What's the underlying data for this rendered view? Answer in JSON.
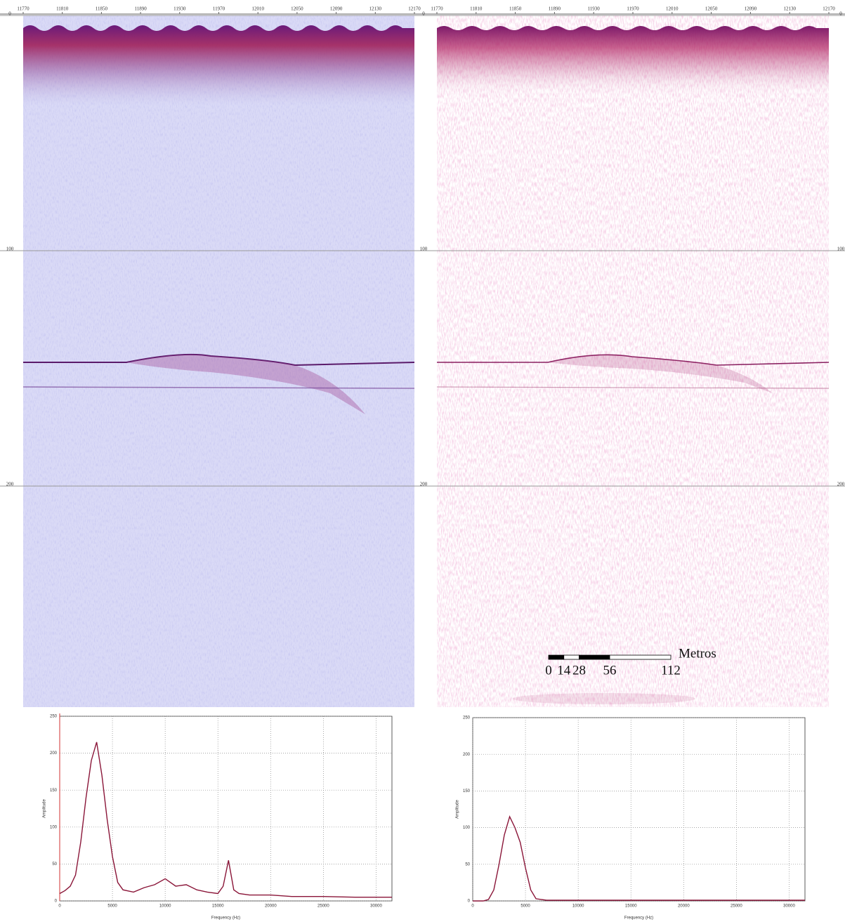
{
  "chart_data": [
    {
      "type": "section",
      "xlim": [
        11770,
        12170
      ],
      "xticks": [
        11770,
        11810,
        11850,
        11890,
        11930,
        11970,
        12010,
        12050,
        12090,
        12130,
        12170
      ],
      "ylim": [
        294,
        0
      ],
      "yticks": [
        0,
        100,
        200
      ],
      "grid": true,
      "color": "#dadaf6"
    },
    {
      "type": "section",
      "xlim": [
        11770,
        12170
      ],
      "xticks": [
        11770,
        11810,
        11850,
        11890,
        11930,
        11970,
        12010,
        12050,
        12090,
        12130,
        12170
      ],
      "ylim": [
        294,
        0
      ],
      "yticks": [
        0,
        100,
        200
      ],
      "grid": true,
      "color": "#ffffff",
      "scale_bar": {
        "ticks": [
          0,
          14,
          28,
          56,
          112
        ],
        "label": "Metros"
      }
    },
    {
      "type": "line",
      "xlabel": "Frequency (Hz)",
      "ylabel": "Amplitude",
      "xlim": [
        0,
        31500
      ],
      "ylim": [
        0,
        250
      ],
      "xticks": [
        0,
        5000,
        10000,
        15000,
        20000,
        25000,
        30000
      ],
      "yticks": [
        0,
        50,
        100,
        150,
        200,
        250
      ],
      "grid": true,
      "color": "#8a1538",
      "x": [
        0,
        500,
        1000,
        1500,
        2000,
        2500,
        3000,
        3500,
        4000,
        4500,
        5000,
        5500,
        6000,
        7000,
        8000,
        9000,
        10000,
        11000,
        12000,
        13000,
        14000,
        15000,
        15500,
        16000,
        16500,
        17000,
        18000,
        20000,
        22000,
        25000,
        28000,
        31500
      ],
      "values": [
        10,
        14,
        20,
        35,
        80,
        140,
        190,
        215,
        170,
        110,
        60,
        25,
        15,
        12,
        18,
        22,
        30,
        20,
        22,
        15,
        12,
        10,
        20,
        55,
        15,
        10,
        8,
        8,
        6,
        6,
        5,
        5
      ]
    },
    {
      "type": "line",
      "xlabel": "Frequency (Hz)",
      "ylabel": "Amplitude",
      "xlim": [
        0,
        31500
      ],
      "ylim": [
        0,
        250
      ],
      "xticks": [
        0,
        5000,
        10000,
        15000,
        20000,
        25000,
        30000
      ],
      "yticks": [
        0,
        50,
        100,
        150,
        200,
        250
      ],
      "grid": true,
      "color": "#8a1538",
      "x": [
        0,
        1000,
        1500,
        2000,
        2500,
        3000,
        3500,
        4000,
        4500,
        5000,
        5500,
        6000,
        7000,
        10000,
        20000,
        31500
      ],
      "values": [
        0,
        0,
        2,
        15,
        50,
        90,
        115,
        100,
        80,
        45,
        15,
        3,
        1,
        1,
        1,
        1
      ]
    }
  ]
}
